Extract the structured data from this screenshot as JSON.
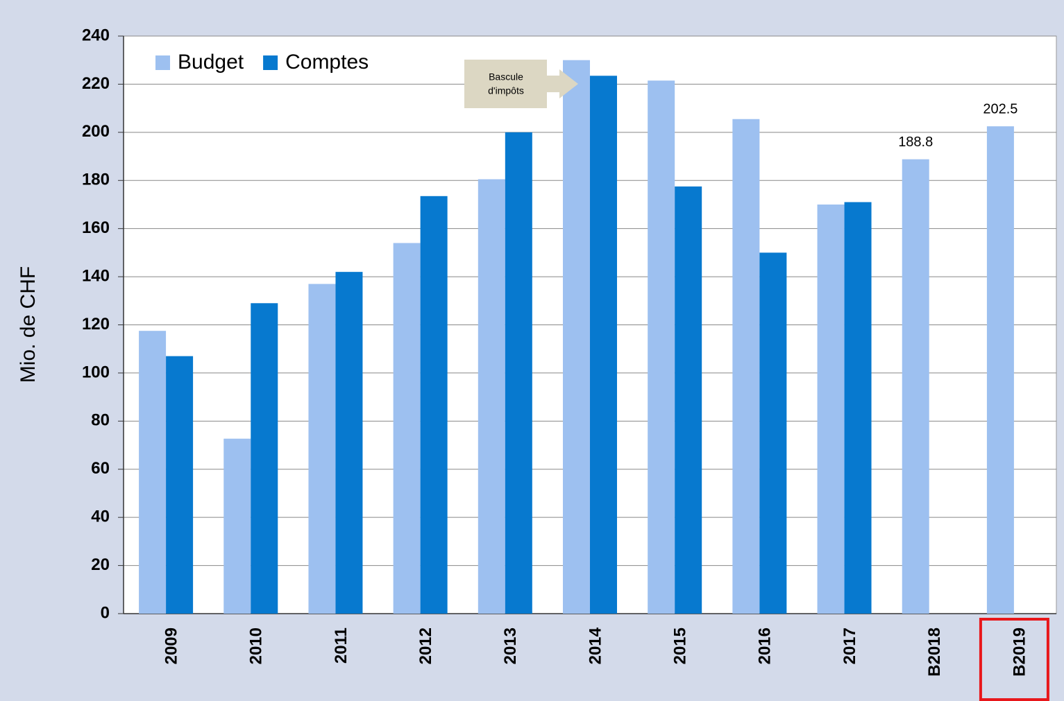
{
  "chart_data": {
    "type": "bar",
    "y_label": "Mio. de CHF",
    "categories": [
      "2009",
      "2010",
      "2011",
      "2012",
      "2013",
      "2014",
      "2015",
      "2016",
      "2017",
      "B2018",
      "B2019"
    ],
    "series": [
      {
        "name": "Budget",
        "color": "#9dc0f0",
        "values": [
          117.5,
          72.7,
          137,
          154,
          180.5,
          230,
          221.5,
          205.5,
          170,
          188.8,
          202.5
        ],
        "value_labels": [
          null,
          null,
          null,
          null,
          null,
          null,
          null,
          null,
          null,
          "188.8",
          "202.5"
        ]
      },
      {
        "name": "Comptes",
        "color": "#0779cf",
        "values": [
          107,
          129,
          142,
          173.5,
          200,
          223.5,
          177.5,
          150,
          171,
          null,
          null
        ]
      }
    ],
    "ylim": [
      0,
      240
    ],
    "yticks": [
      0,
      20,
      40,
      60,
      80,
      100,
      120,
      140,
      160,
      180,
      200,
      220,
      240
    ],
    "grid": true,
    "legend": "top-left",
    "annotation": {
      "lines": [
        "Bascule",
        "d'impôts"
      ],
      "color": "#dcd7c3"
    },
    "highlight": {
      "category": "B2019",
      "color": "#e8171b"
    }
  }
}
